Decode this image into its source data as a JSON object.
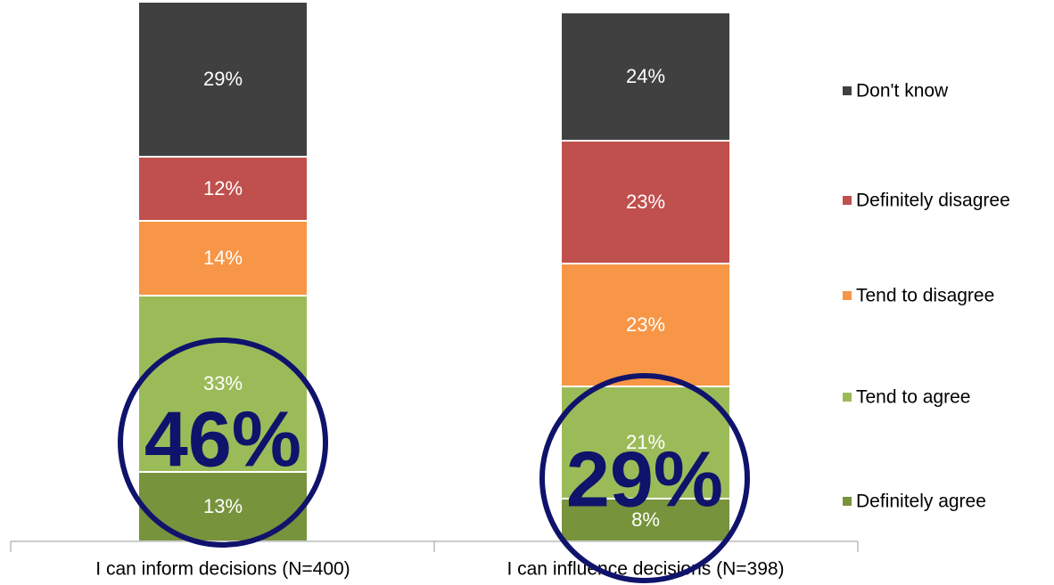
{
  "chart_data": {
    "type": "stacked_bar",
    "categories": [
      "I can inform decisions (N=400)",
      "I can influence decisions (N=398)"
    ],
    "series": [
      {
        "name": "Definitely agree",
        "color": "#77933c",
        "values": [
          13,
          8
        ],
        "value_labels": [
          "13%",
          "8%"
        ]
      },
      {
        "name": "Tend to agree",
        "color": "#9bbb59",
        "values": [
          33,
          21
        ],
        "value_labels": [
          "33%",
          "21%"
        ]
      },
      {
        "name": "Tend to disagree",
        "color": "#f79646",
        "values": [
          14,
          23
        ],
        "value_labels": [
          "14%",
          "23%"
        ]
      },
      {
        "name": "Definitely disagree",
        "color": "#c0504d",
        "values": [
          12,
          23
        ],
        "value_labels": [
          "12%",
          "23%"
        ]
      },
      {
        "name": "Don't know",
        "color": "#404040",
        "values": [
          29,
          24
        ],
        "value_labels": [
          "29%",
          "24%"
        ]
      }
    ],
    "ylim": [
      0,
      100
    ],
    "annotations": [
      "46%",
      "29%"
    ]
  }
}
